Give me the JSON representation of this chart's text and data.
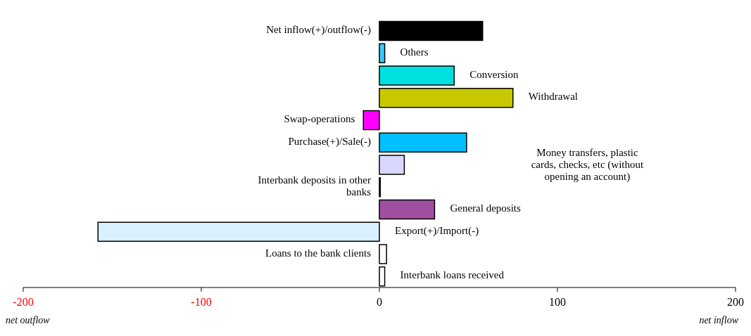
{
  "chart_data": {
    "type": "bar",
    "orientation": "horizontal",
    "categories": [
      "Net inflow(+)/outflow(-)",
      "Others",
      "Conversion",
      "Withdrawal",
      "Swap-operations",
      "Purchase(+)/Sale(-)",
      "Money transfers, plastic cards, checks, etc (without opening an account)",
      "Interbank deposits in other banks",
      "General deposits",
      "Export(+)/Import(-)",
      "Loans to the bank clients",
      "Interbank loans received"
    ],
    "values": [
      58,
      3,
      42,
      75,
      -9,
      49,
      14,
      0.5,
      31,
      -158,
      4,
      3
    ],
    "colors": [
      "#000000",
      "#33ccff",
      "#00e0e0",
      "#c8c800",
      "#ff00ff",
      "#00bfff",
      "#d8d8ff",
      "#ffffff",
      "#a050a0",
      "#d8f0ff",
      "#ffffff",
      "#ffffff"
    ],
    "xlim": [
      -200,
      200
    ],
    "xticks": [
      -200,
      -100,
      0,
      100,
      200
    ],
    "tick_labels": "x",
    "annotations": [
      "net outflow",
      "net inflow"
    ]
  }
}
